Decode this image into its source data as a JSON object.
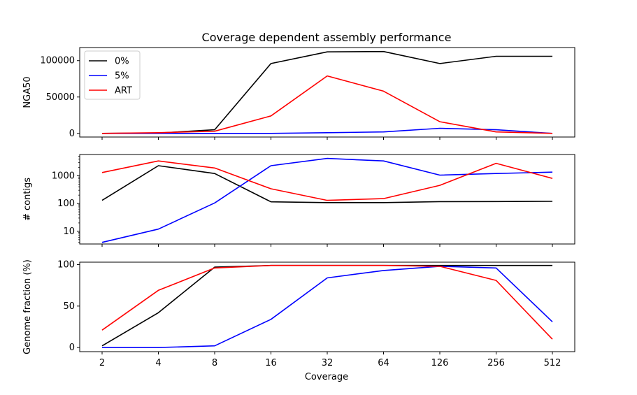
{
  "chart_data": {
    "title": "Coverage dependent assembly performance",
    "xlabel": "Coverage",
    "categories": [
      "2",
      "4",
      "8",
      "16",
      "32",
      "64",
      "126",
      "256",
      "512"
    ],
    "legend": {
      "placement": "upper-left",
      "entries": [
        "0%",
        "5%",
        "ART"
      ]
    },
    "colors": {
      "0%": "#000000",
      "5%": "#0000ff",
      "ART": "#ff0000"
    },
    "panels": [
      {
        "type": "line",
        "ylabel": "NGA50",
        "yscale": "linear",
        "ylim": [
          -5000,
          118000
        ],
        "yticks": [
          0,
          50000,
          100000
        ],
        "ytick_labels": [
          "0",
          "50000",
          "100000"
        ],
        "series": [
          {
            "name": "0%",
            "values": [
              0,
              500,
              5000,
              96000,
              112000,
              112500,
              96000,
              106000,
              106000
            ]
          },
          {
            "name": "5%",
            "values": [
              0,
              0,
              0,
              0,
              1000,
              2000,
              7000,
              5000,
              0
            ]
          },
          {
            "name": "ART",
            "values": [
              0,
              1000,
              3000,
              24000,
              79000,
              58000,
              16000,
              2000,
              0
            ]
          }
        ]
      },
      {
        "type": "line",
        "ylabel": "# contigs",
        "yscale": "log",
        "ylim": [
          3.5,
          5800
        ],
        "yticks": [
          10,
          100,
          1000
        ],
        "ytick_labels": [
          "10",
          "100",
          "1000"
        ],
        "series": [
          {
            "name": "0%",
            "values": [
              130,
              2300,
              1200,
              115,
              108,
              108,
              117,
              118,
              120
            ]
          },
          {
            "name": "5%",
            "values": [
              4,
              12,
              105,
              2300,
              4200,
              3400,
              1050,
              1200,
              1350
            ]
          },
          {
            "name": "ART",
            "values": [
              1300,
              3400,
              1900,
              340,
              130,
              150,
              450,
              2800,
              800
            ]
          }
        ]
      },
      {
        "type": "line",
        "ylabel": "Genome fraction (%)",
        "yscale": "linear",
        "ylim": [
          -5,
          103
        ],
        "yticks": [
          0,
          50,
          100
        ],
        "ytick_labels": [
          "0",
          "50",
          "100"
        ],
        "series": [
          {
            "name": "0%",
            "values": [
              2,
              42,
              97,
              99,
              99,
              99,
              99,
              99,
              99
            ]
          },
          {
            "name": "5%",
            "values": [
              0,
              0,
              2,
              34,
              84,
              93,
              98,
              96,
              31
            ]
          },
          {
            "name": "ART",
            "values": [
              21,
              69,
              96,
              99,
              99,
              99,
              98,
              81,
              10
            ]
          }
        ]
      }
    ]
  }
}
